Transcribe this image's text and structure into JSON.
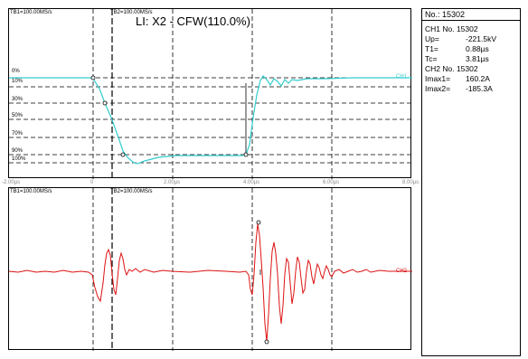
{
  "top_panel": {
    "tb1": "TB1=100.00MS/s",
    "tb2": "TB2=100.00MS/s",
    "title": "LI:  X2 - CFW(110.0%)",
    "channel_label": "CH1",
    "levels": [
      "0%",
      "10%",
      "30%",
      "50%",
      "70%",
      "90%",
      "100%"
    ]
  },
  "bottom_panel": {
    "tb1": "TB1=100.00MS/s",
    "tb2": "TB2=100.00MS/s",
    "channel_label": "CH2"
  },
  "x_axis": {
    "ticks": [
      "-2.00µs",
      "0",
      "2.00µs",
      "4.00µs",
      "6.00µs",
      "8.00µs"
    ]
  },
  "info": {
    "header": "No.: 15302",
    "ch1": "CH1  No. 15302",
    "rows": [
      {
        "k": "Up=",
        "v": "-221.5kV"
      },
      {
        "k": "T1=",
        "v": "0.88µs"
      },
      {
        "k": "Tc=",
        "v": "3.81µs"
      }
    ],
    "ch2": "CH2  No. 15302",
    "rows2": [
      {
        "k": "Imax1=",
        "v": "160.2A"
      },
      {
        "k": "Imax2=",
        "v": "-185.3A"
      }
    ]
  },
  "colors": {
    "ch1": "#33cccc",
    "ch2": "#dd1111"
  }
}
